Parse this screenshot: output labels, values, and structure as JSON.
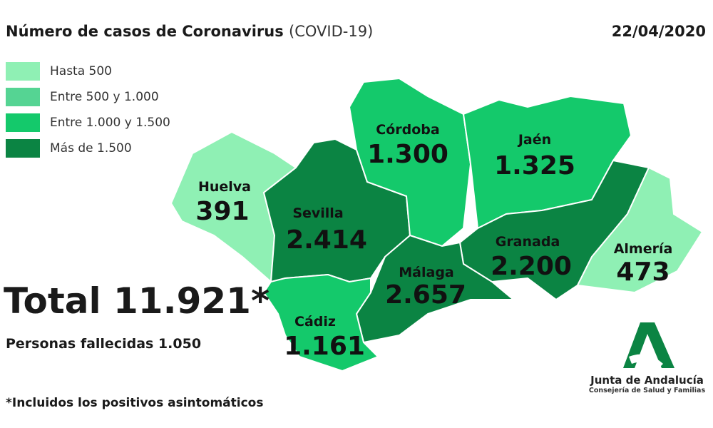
{
  "header": {
    "title": "Número de casos de Coronavirus",
    "title_suffix": "(COVID-19)",
    "date": "22/04/2020"
  },
  "legend": [
    {
      "label": "Hasta 500",
      "color": "#8ff0b4"
    },
    {
      "label": "Entre 500 y 1.000",
      "color": "#55d493"
    },
    {
      "label": "Entre 1.000 y 1.500",
      "color": "#14c96b"
    },
    {
      "label": "Más de 1.500",
      "color": "#0b8443"
    }
  ],
  "provinces": [
    {
      "name": "Huelva",
      "cases": "391",
      "color": "#8ff0b4"
    },
    {
      "name": "Sevilla",
      "cases": "2.414",
      "color": "#0b8443"
    },
    {
      "name": "Córdoba",
      "cases": "1.300",
      "color": "#14c96b"
    },
    {
      "name": "Jaén",
      "cases": "1.325",
      "color": "#14c96b"
    },
    {
      "name": "Granada",
      "cases": "2.200",
      "color": "#0b8443"
    },
    {
      "name": "Almería",
      "cases": "473",
      "color": "#8ff0b4"
    },
    {
      "name": "Málaga",
      "cases": "2.657",
      "color": "#0b8443"
    },
    {
      "name": "Cádiz",
      "cases": "1.161",
      "color": "#14c96b"
    }
  ],
  "summary": {
    "total": "Total 11.921*",
    "deaths": "Personas fallecidas 1.050",
    "footnote": "*Incluidos los positivos asintomáticos"
  },
  "logo": {
    "name": "Junta de Andalucía",
    "department": "Consejería de Salud y Familias",
    "color": "#0b8443"
  }
}
